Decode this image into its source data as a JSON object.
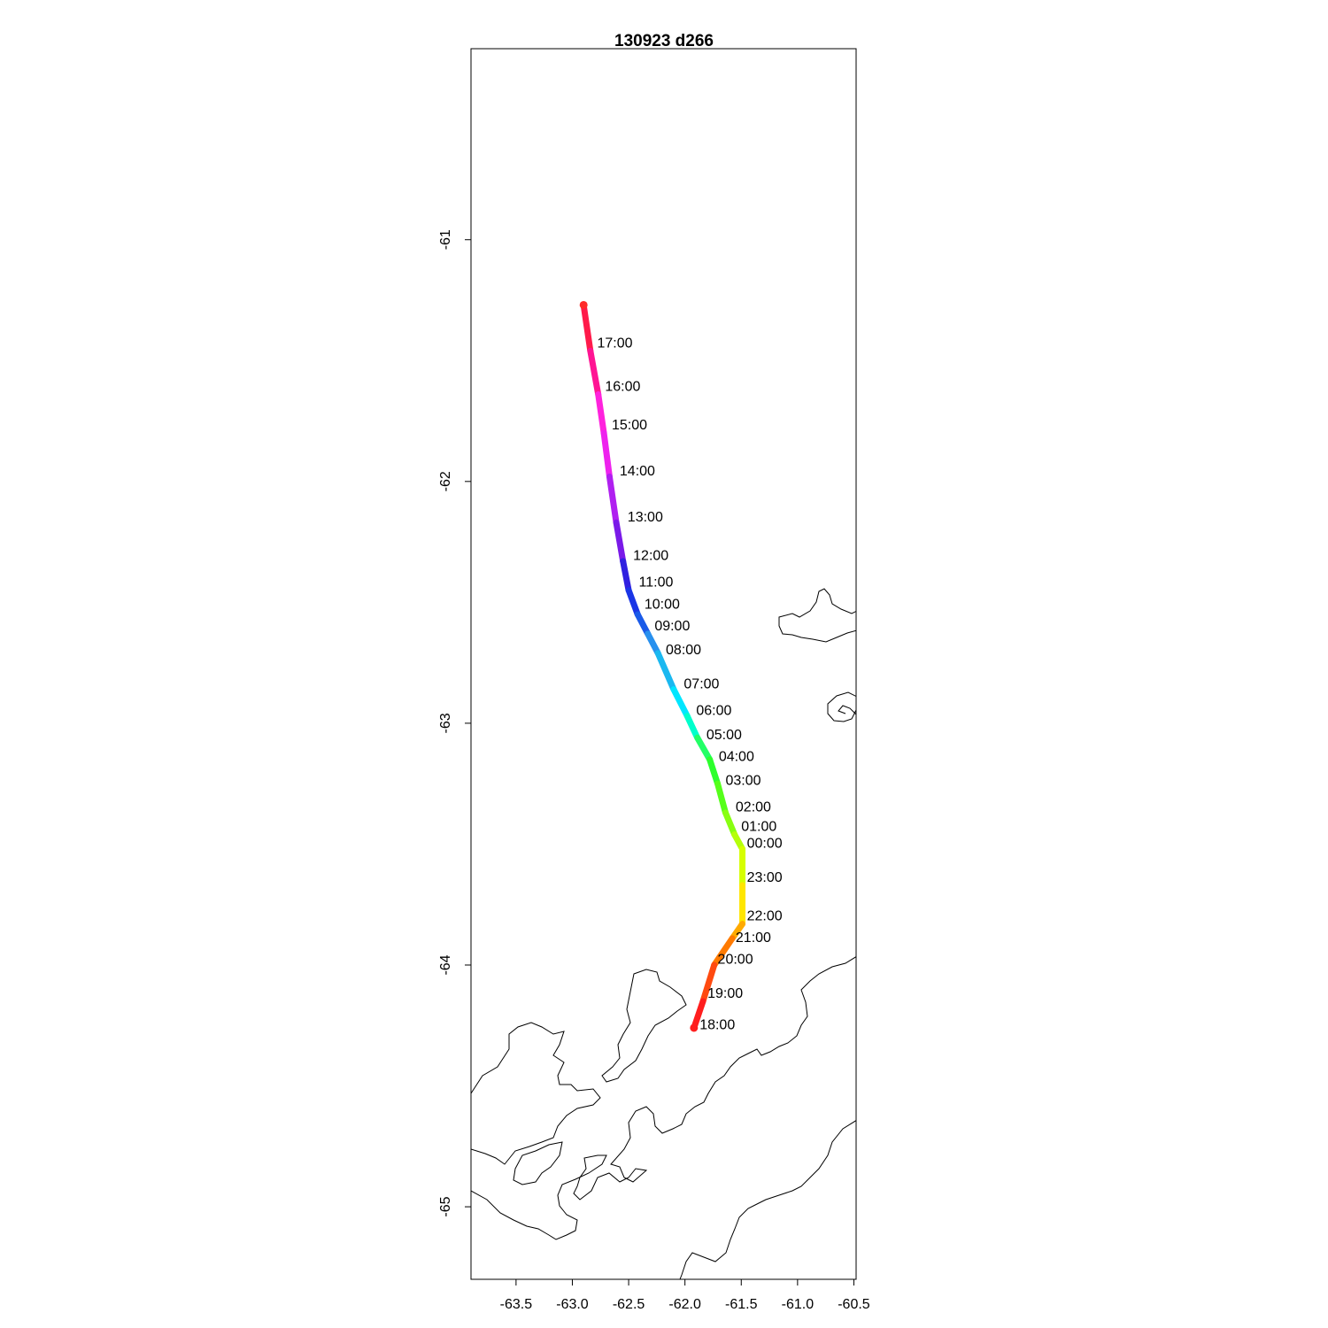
{
  "title": "130923   d266",
  "map": {
    "xlim": [
      -63.9,
      -60.48
    ],
    "ylim": [
      -60.21,
      -65.3
    ],
    "x_ticks": [
      "-63.5",
      "-63.0",
      "-62.5",
      "-62.0",
      "-61.5",
      "-61.0",
      "-60.5"
    ],
    "y_ticks": [
      "-61",
      "-62",
      "-63",
      "-64",
      "-65"
    ]
  },
  "chart_data": {
    "type": "scatter",
    "title": "130923   d266",
    "xlabel": "",
    "ylabel": "",
    "grid": false,
    "track": [
      {
        "x": -62.9,
        "y": -61.27,
        "color": "#ff2a2a"
      },
      {
        "x": -62.84,
        "y": -61.46,
        "color": "#ff1a4a"
      },
      {
        "x": -62.77,
        "y": -61.64,
        "color": "#ff1493"
      },
      {
        "x": -62.72,
        "y": -61.8,
        "color": "#ff22dd"
      },
      {
        "x": -62.67,
        "y": -61.98,
        "color": "#ee22ee"
      },
      {
        "x": -62.61,
        "y": -62.17,
        "color": "#b020f0"
      },
      {
        "x": -62.55,
        "y": -62.33,
        "color": "#7a1ae8"
      },
      {
        "x": -62.5,
        "y": -62.45,
        "color": "#3020e0"
      },
      {
        "x": -62.42,
        "y": -62.55,
        "color": "#1a35e6"
      },
      {
        "x": -62.33,
        "y": -62.63,
        "color": "#1a5ae8"
      },
      {
        "x": -62.24,
        "y": -62.71,
        "color": "#2890ee"
      },
      {
        "x": -62.1,
        "y": -62.86,
        "color": "#1ab8f0"
      },
      {
        "x": -61.98,
        "y": -62.97,
        "color": "#00e6ff"
      },
      {
        "x": -61.89,
        "y": -63.06,
        "color": "#00ffcc"
      },
      {
        "x": -61.78,
        "y": -63.15,
        "color": "#22ff66"
      },
      {
        "x": -61.71,
        "y": -63.25,
        "color": "#2cff2c"
      },
      {
        "x": -61.64,
        "y": -63.37,
        "color": "#55ff1a"
      },
      {
        "x": -61.56,
        "y": -63.46,
        "color": "#88ff11"
      },
      {
        "x": -61.49,
        "y": -63.52,
        "color": "#b4ff0a"
      },
      {
        "x": -61.49,
        "y": -63.67,
        "color": "#d6ff00"
      },
      {
        "x": -61.49,
        "y": -63.83,
        "color": "#ffe600"
      },
      {
        "x": -61.58,
        "y": -63.89,
        "color": "#ffaa00"
      },
      {
        "x": -61.74,
        "y": -64.0,
        "color": "#ff7a00"
      },
      {
        "x": -61.84,
        "y": -64.15,
        "color": "#ff4a10"
      },
      {
        "x": -61.92,
        "y": -64.26,
        "color": "#ff1e1e"
      }
    ],
    "time_labels": [
      {
        "text": "17:00",
        "x": -62.78,
        "y": -61.43
      },
      {
        "text": "16:00",
        "x": -62.71,
        "y": -61.61
      },
      {
        "text": "15:00",
        "x": -62.65,
        "y": -61.77
      },
      {
        "text": "14:00",
        "x": -62.58,
        "y": -61.96
      },
      {
        "text": "13:00",
        "x": -62.51,
        "y": -62.15
      },
      {
        "text": "12:00",
        "x": -62.46,
        "y": -62.31
      },
      {
        "text": "11:00",
        "x": -62.41,
        "y": -62.42
      },
      {
        "text": "10:00",
        "x": -62.36,
        "y": -62.51
      },
      {
        "text": "09:00",
        "x": -62.27,
        "y": -62.6
      },
      {
        "text": "08:00",
        "x": -62.17,
        "y": -62.7
      },
      {
        "text": "07:00",
        "x": -62.01,
        "y": -62.84
      },
      {
        "text": "06:00",
        "x": -61.9,
        "y": -62.95
      },
      {
        "text": "05:00",
        "x": -61.81,
        "y": -63.05
      },
      {
        "text": "04:00",
        "x": -61.7,
        "y": -63.14
      },
      {
        "text": "03:00",
        "x": -61.64,
        "y": -63.24
      },
      {
        "text": "02:00",
        "x": -61.55,
        "y": -63.35
      },
      {
        "text": "01:00",
        "x": -61.5,
        "y": -63.43
      },
      {
        "text": "00:00",
        "x": -61.45,
        "y": -63.5
      },
      {
        "text": "23:00",
        "x": -61.45,
        "y": -63.64
      },
      {
        "text": "22:00",
        "x": -61.45,
        "y": -63.8
      },
      {
        "text": "21:00",
        "x": -61.55,
        "y": -63.89
      },
      {
        "text": "20:00",
        "x": -61.71,
        "y": -63.98
      },
      {
        "text": "19:00",
        "x": -61.8,
        "y": -64.12
      },
      {
        "text": "18:00",
        "x": -61.87,
        "y": -64.25
      }
    ]
  }
}
